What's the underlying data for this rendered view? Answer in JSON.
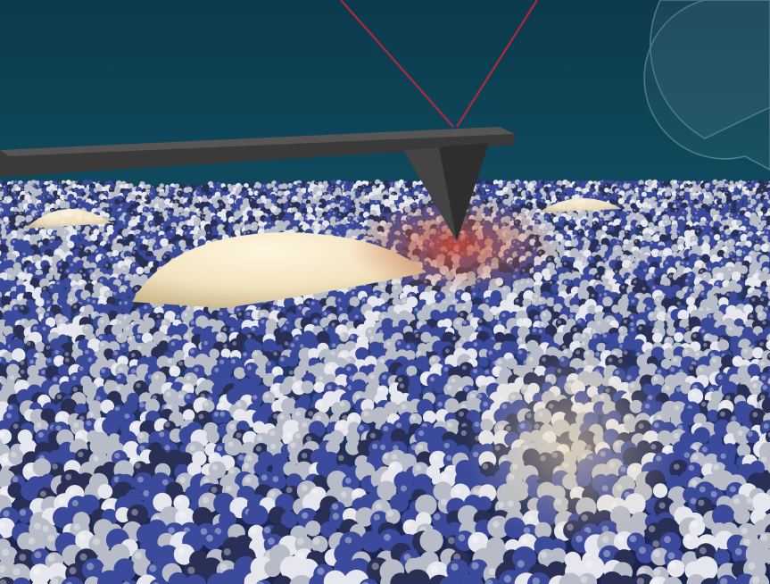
{
  "scene": {
    "subject": "",
    "colors": {
      "background_top": "#0b3a4c",
      "background_mid": "#14546a",
      "background_bottom": "#0a2430",
      "laser": "#b0283a",
      "cantilever": "#3a3a3a",
      "cantilever_edge": "#555555",
      "droplet": "#f2e3c0",
      "droplet_highlight": "#fff6e0",
      "hotspot": "#d04a3a",
      "particle_blue": "#3b4a9a",
      "particle_grey": "#b8bcc8",
      "particle_white": "#e6e6ee",
      "particle_dark": "#2a2f55"
    },
    "icons": []
  }
}
